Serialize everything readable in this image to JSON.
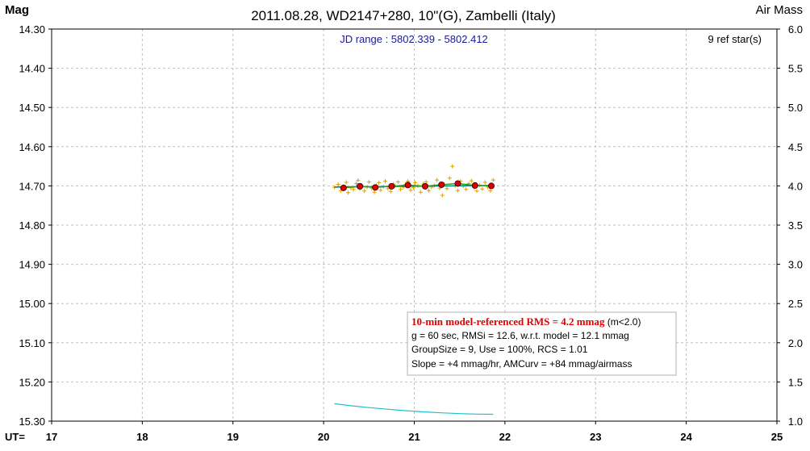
{
  "chart_data": {
    "type": "scatter",
    "title": "2011.08.28, WD2147+280, 10\"(G), Zambelli (Italy)",
    "ylabel": "Mag",
    "y2label": "Air Mass",
    "xlabel": "UT=",
    "x_ticks": [
      "17",
      "18",
      "19",
      "20",
      "21",
      "22",
      "23",
      "24",
      "25"
    ],
    "y_ticks": [
      "14.30",
      "14.40",
      "14.50",
      "14.60",
      "14.70",
      "14.80",
      "14.90",
      "15.00",
      "15.10",
      "15.20",
      "15.30"
    ],
    "y2_ticks": [
      "6.0",
      "5.5",
      "5.0",
      "4.5",
      "4.0",
      "3.5",
      "3.0",
      "2.5",
      "2.0",
      "1.5",
      "1.0"
    ],
    "xlim": [
      17,
      25
    ],
    "ylim": [
      15.3,
      14.3
    ],
    "y2lim": [
      1.0,
      6.0
    ],
    "grid": true,
    "jd_range": "JD range : 5802.339 - 5802.412",
    "ref_stars": "9 ref star(s)",
    "stats": {
      "headline": "10-min model-referenced RMS = 4.2 mmag",
      "headline_suffix": " (m<2.0)",
      "line2": "g = 60 sec, RMSi = 12.6, w.r.t. model = 12.1 mmag",
      "line3": "GroupSize = 9, Use = 100%, RCS = 1.01",
      "line4": "Slope = +4 mmag/hr, AMCurv = +84 mmag/airmass"
    },
    "series": [
      {
        "kind": "individual",
        "color": "#e0a000",
        "x": [
          20.12,
          20.16,
          20.19,
          20.22,
          20.25,
          20.27,
          20.3,
          20.33,
          20.36,
          20.38,
          20.4,
          20.42,
          20.45,
          20.48,
          20.5,
          20.53,
          20.56,
          20.58,
          20.61,
          20.63,
          20.66,
          20.68,
          20.71,
          20.74,
          20.77,
          20.79,
          20.82,
          20.85,
          20.88,
          20.9,
          20.93,
          20.96,
          20.99,
          21.01,
          21.04,
          21.07,
          21.1,
          21.13,
          21.16,
          21.19,
          21.22,
          21.25,
          21.28,
          21.31,
          21.33,
          21.36,
          21.39,
          21.42,
          21.45,
          21.48,
          21.51,
          21.54,
          21.57,
          21.6,
          21.63,
          21.66,
          21.69,
          21.72,
          21.75,
          21.78,
          21.81,
          21.84,
          21.87
        ],
        "y": [
          14.704,
          14.696,
          14.712,
          14.701,
          14.691,
          14.717,
          14.705,
          14.709,
          14.694,
          14.686,
          14.708,
          14.698,
          14.713,
          14.703,
          14.69,
          14.706,
          14.716,
          14.699,
          14.692,
          14.711,
          14.702,
          14.688,
          14.707,
          14.714,
          14.695,
          14.7,
          14.69,
          14.709,
          14.703,
          14.697,
          14.688,
          14.711,
          14.705,
          14.692,
          14.7,
          14.716,
          14.695,
          14.69,
          14.712,
          14.703,
          14.699,
          14.685,
          14.706,
          14.724,
          14.696,
          14.707,
          14.68,
          14.65,
          14.7,
          14.712,
          14.688,
          14.701,
          14.709,
          14.694,
          14.687,
          14.705,
          14.713,
          14.698,
          14.708,
          14.691,
          14.703,
          14.712,
          14.685
        ]
      },
      {
        "kind": "binned",
        "color": "#dd0000",
        "x": [
          20.22,
          20.4,
          20.57,
          20.75,
          20.93,
          21.12,
          21.3,
          21.48,
          21.67,
          21.85
        ],
        "y": [
          14.705,
          14.701,
          14.704,
          14.701,
          14.698,
          14.701,
          14.697,
          14.694,
          14.699,
          14.7
        ]
      },
      {
        "kind": "model",
        "color": "#008080",
        "x": [
          20.12,
          21.87
        ],
        "y": [
          14.703,
          14.699
        ]
      },
      {
        "kind": "airmass",
        "axis": "right",
        "color": "#20c0c8",
        "x": [
          20.12,
          20.3,
          20.5,
          20.7,
          20.9,
          21.1,
          21.3,
          21.5,
          21.7,
          21.87
        ],
        "y": [
          1.222,
          1.197,
          1.173,
          1.152,
          1.134,
          1.118,
          1.106,
          1.096,
          1.09,
          1.087
        ]
      }
    ]
  }
}
